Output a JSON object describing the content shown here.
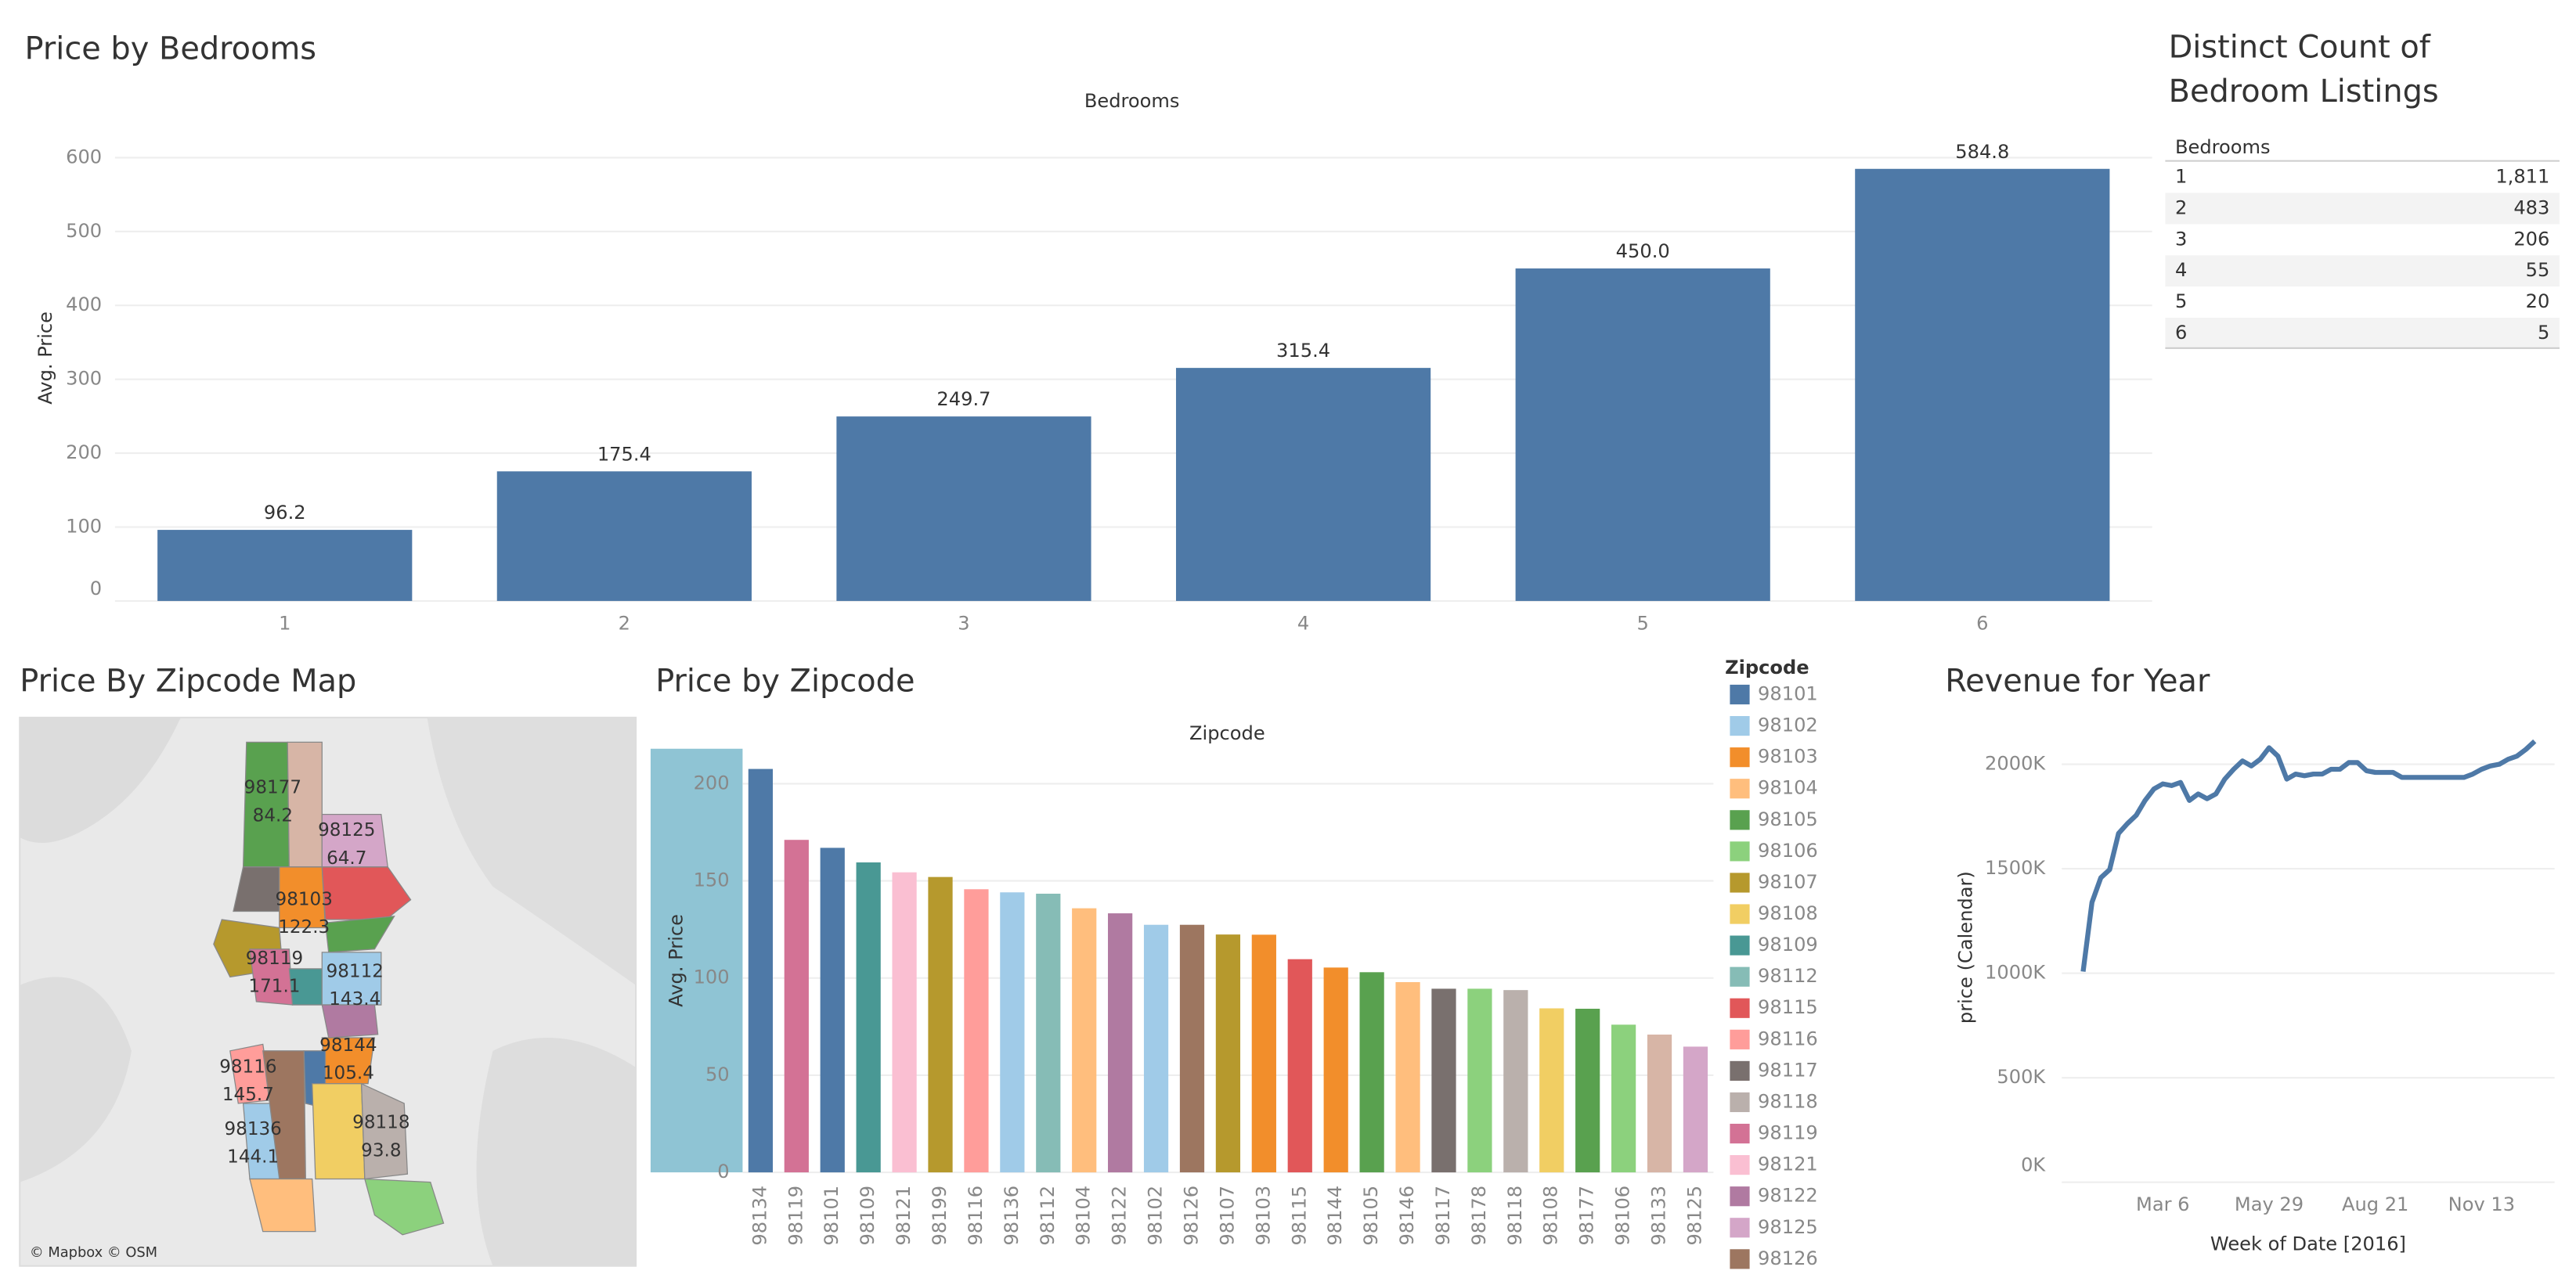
{
  "chart_data": [
    {
      "type": "bar",
      "title": "Price by Bedrooms",
      "header": "Bedrooms",
      "y_label": "Avg. Price",
      "categories": [
        "1",
        "2",
        "3",
        "4",
        "5",
        "6"
      ],
      "values": [
        96.2,
        175.4,
        249.7,
        315.4,
        450.0,
        584.8
      ],
      "value_labels": [
        "96.2",
        "175.4",
        "249.7",
        "315.4",
        "450.0",
        "584.8"
      ],
      "color": "#4e79a7",
      "ylim": [
        0,
        640
      ],
      "yticks": [
        0,
        100,
        200,
        300,
        400,
        500,
        600
      ],
      "grid": true
    },
    {
      "type": "bar",
      "title": "Price by Zipcode",
      "header": "Zipcode",
      "y_label": "Avg. Price",
      "categories": [
        "98134",
        "98119",
        "98101",
        "98109",
        "98121",
        "98199",
        "98116",
        "98136",
        "98112",
        "98104",
        "98122",
        "98102",
        "98126",
        "98107",
        "98103",
        "98115",
        "98144",
        "98105",
        "98146",
        "98117",
        "98178",
        "98118",
        "98108",
        "98177",
        "98106",
        "98133",
        "98125"
      ],
      "values": [
        207.6,
        171.1,
        167,
        159.5,
        154.4,
        152,
        145.7,
        144.1,
        143.4,
        135.9,
        133.3,
        127.4,
        127.4,
        122.4,
        122.3,
        109.7,
        105.4,
        103,
        97.9,
        94.5,
        94.5,
        93.8,
        84.4,
        84.2,
        76,
        70.9,
        64.7
      ],
      "colors": [
        "#4e79a7",
        "#d37295",
        "#4e79a7",
        "#499894",
        "#fabfd2",
        "#b6992d",
        "#ff9d9a",
        "#a0cbe8",
        "#86bcb6",
        "#ffbe7d",
        "#b07aa1",
        "#a0cbe8",
        "#9d7660",
        "#b6992d",
        "#f28e2b",
        "#e15759",
        "#f28e2b",
        "#59a14f",
        "#ffbe7d",
        "#79706e",
        "#8cd17d",
        "#bab0ac",
        "#f1ce63",
        "#59a14f",
        "#8cd17d",
        "#d7b5a6",
        "#d4a6c8"
      ],
      "ylim": [
        0,
        218
      ],
      "yticks": [
        0,
        50,
        100,
        150,
        200
      ],
      "grid": true,
      "legend": {
        "title": "Zipcode",
        "items": [
          {
            "name": "98101",
            "color": "#4e79a7"
          },
          {
            "name": "98102",
            "color": "#a0cbe8"
          },
          {
            "name": "98103",
            "color": "#f28e2b"
          },
          {
            "name": "98104",
            "color": "#ffbe7d"
          },
          {
            "name": "98105",
            "color": "#59a14f"
          },
          {
            "name": "98106",
            "color": "#8cd17d"
          },
          {
            "name": "98107",
            "color": "#b6992d"
          },
          {
            "name": "98108",
            "color": "#f1ce63"
          },
          {
            "name": "98109",
            "color": "#499894"
          },
          {
            "name": "98112",
            "color": "#86bcb6"
          },
          {
            "name": "98115",
            "color": "#e15759"
          },
          {
            "name": "98116",
            "color": "#ff9d9a"
          },
          {
            "name": "98117",
            "color": "#79706e"
          },
          {
            "name": "98118",
            "color": "#bab0ac"
          },
          {
            "name": "98119",
            "color": "#d37295"
          },
          {
            "name": "98121",
            "color": "#fabfd2"
          },
          {
            "name": "98122",
            "color": "#b07aa1"
          },
          {
            "name": "98125",
            "color": "#d4a6c8"
          },
          {
            "name": "98126",
            "color": "#9d7660"
          }
        ]
      }
    },
    {
      "type": "line",
      "title": "Revenue for Year",
      "x_label": "Week of Date [2016]",
      "y_label": "price (Calendar)",
      "categories": [
        null,
        null,
        null,
        null,
        null,
        null,
        null,
        null,
        null,
        "Mar 6",
        null,
        null,
        null,
        null,
        null,
        null,
        null,
        null,
        null,
        null,
        null,
        "May 29",
        null,
        null,
        null,
        null,
        null,
        null,
        null,
        null,
        null,
        null,
        null,
        "Aug 21",
        null,
        null,
        null,
        null,
        null,
        null,
        null,
        null,
        null,
        null,
        null,
        "Nov 13",
        null,
        null,
        null,
        null,
        null,
        null
      ],
      "values": [
        1008000,
        1339000,
        1457000,
        1496000,
        1669000,
        1716000,
        1756000,
        1827000,
        1882000,
        1906000,
        1898000,
        1913000,
        1827000,
        1858000,
        1835000,
        1858000,
        1929000,
        1976000,
        2016000,
        1992000,
        2024000,
        2079000,
        2039000,
        1929000,
        1953000,
        1945000,
        1953000,
        1953000,
        1976000,
        1976000,
        2008000,
        2008000,
        1969000,
        1961000,
        1961000,
        1961000,
        1937000,
        1937000,
        1937000,
        1937000,
        1937000,
        1937000,
        1937000,
        1937000,
        1953000,
        1976000,
        1992000,
        2000000,
        2024000,
        2039000,
        2071000,
        2110000
      ],
      "color": "#4e79a7",
      "ylim": [
        0,
        2200000
      ],
      "yticks": [
        {
          "value": 0,
          "label": "0K"
        },
        {
          "value": 500000,
          "label": "500K"
        },
        {
          "value": 1000000,
          "label": "1000K"
        },
        {
          "value": 1500000,
          "label": "1500K"
        },
        {
          "value": 2000000,
          "label": "2000K"
        }
      ],
      "grid": true
    }
  ],
  "table": {
    "title": "Distinct Count of Bedroom Listings",
    "column": "Bedrooms",
    "rows": [
      [
        "1",
        "1,811"
      ],
      [
        "2",
        "483"
      ],
      [
        "3",
        "206"
      ],
      [
        "4",
        "55"
      ],
      [
        "5",
        "20"
      ],
      [
        "6",
        "5"
      ]
    ]
  },
  "map": {
    "title": "Price By Zipcode Map",
    "attribution": "© Mapbox © OSM",
    "regions": [
      {
        "zipcode": "98177",
        "price": "84.2"
      },
      {
        "zipcode": "98125",
        "price": "64.7"
      },
      {
        "zipcode": "98103",
        "price": "122.3"
      },
      {
        "zipcode": "98119",
        "price": "171.1"
      },
      {
        "zipcode": "98112",
        "price": "143.4"
      },
      {
        "zipcode": "98144",
        "price": "105.4"
      },
      {
        "zipcode": "98116",
        "price": "145.7"
      },
      {
        "zipcode": "98136",
        "price": "144.1"
      },
      {
        "zipcode": "98118",
        "price": "93.8"
      }
    ]
  }
}
